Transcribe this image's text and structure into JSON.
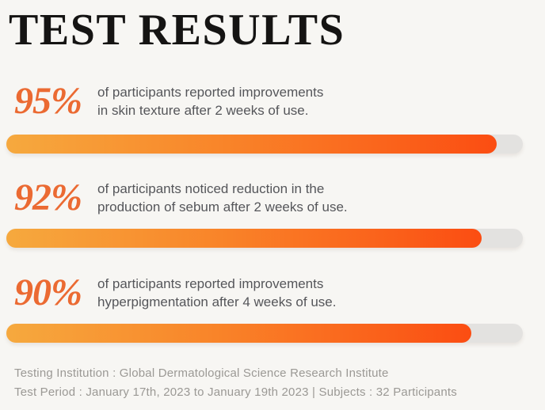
{
  "title": "TEST RESULTS",
  "colors": {
    "background": "#F7F6F3",
    "title_text": "#151413",
    "percent_text": "#EB6A32",
    "description_text": "#55565A",
    "bar_gradient_start": "#F6A93E",
    "bar_gradient_end": "#FB4D12",
    "bar_track": "#E3E2E0",
    "footer_text": "#9B9995"
  },
  "stats": [
    {
      "label": "95%",
      "percent": 95,
      "line1": "of participants reported improvements",
      "line2": "in skin texture after 2 weeks of use."
    },
    {
      "label": "92%",
      "percent": 92,
      "line1": "of participants noticed reduction in the",
      "line2": "production of sebum after 2 weeks of use."
    },
    {
      "label": "90%",
      "percent": 90,
      "line1": "of participants reported improvements",
      "line2": "hyperpigmentation after 4 weeks of use."
    }
  ],
  "footer": {
    "line1": "Testing Institution : Global Dermatological Science Research Institute",
    "line2": "Test Period : January 17th, 2023 to January 19th 2023 | Subjects : 32 Participants"
  },
  "chart_data": {
    "type": "bar",
    "orientation": "horizontal",
    "title": "TEST RESULTS",
    "categories": [
      "of participants reported improvements in skin texture after 2 weeks of use.",
      "of participants noticed reduction in the production of sebum after 2 weeks of use.",
      "of participants reported improvements hyperpigmentation after 4 weeks of use."
    ],
    "values": [
      95,
      92,
      90
    ],
    "value_labels": [
      "95%",
      "92%",
      "90%"
    ],
    "xlabel": "",
    "ylabel": "",
    "xlim": [
      0,
      100
    ],
    "grid": false,
    "legend": false,
    "annotations": [
      "Testing Institution : Global Dermatological Science Research Institute",
      "Test Period : January 17th, 2023 to January 19th 2023 | Subjects : 32 Participants"
    ]
  }
}
